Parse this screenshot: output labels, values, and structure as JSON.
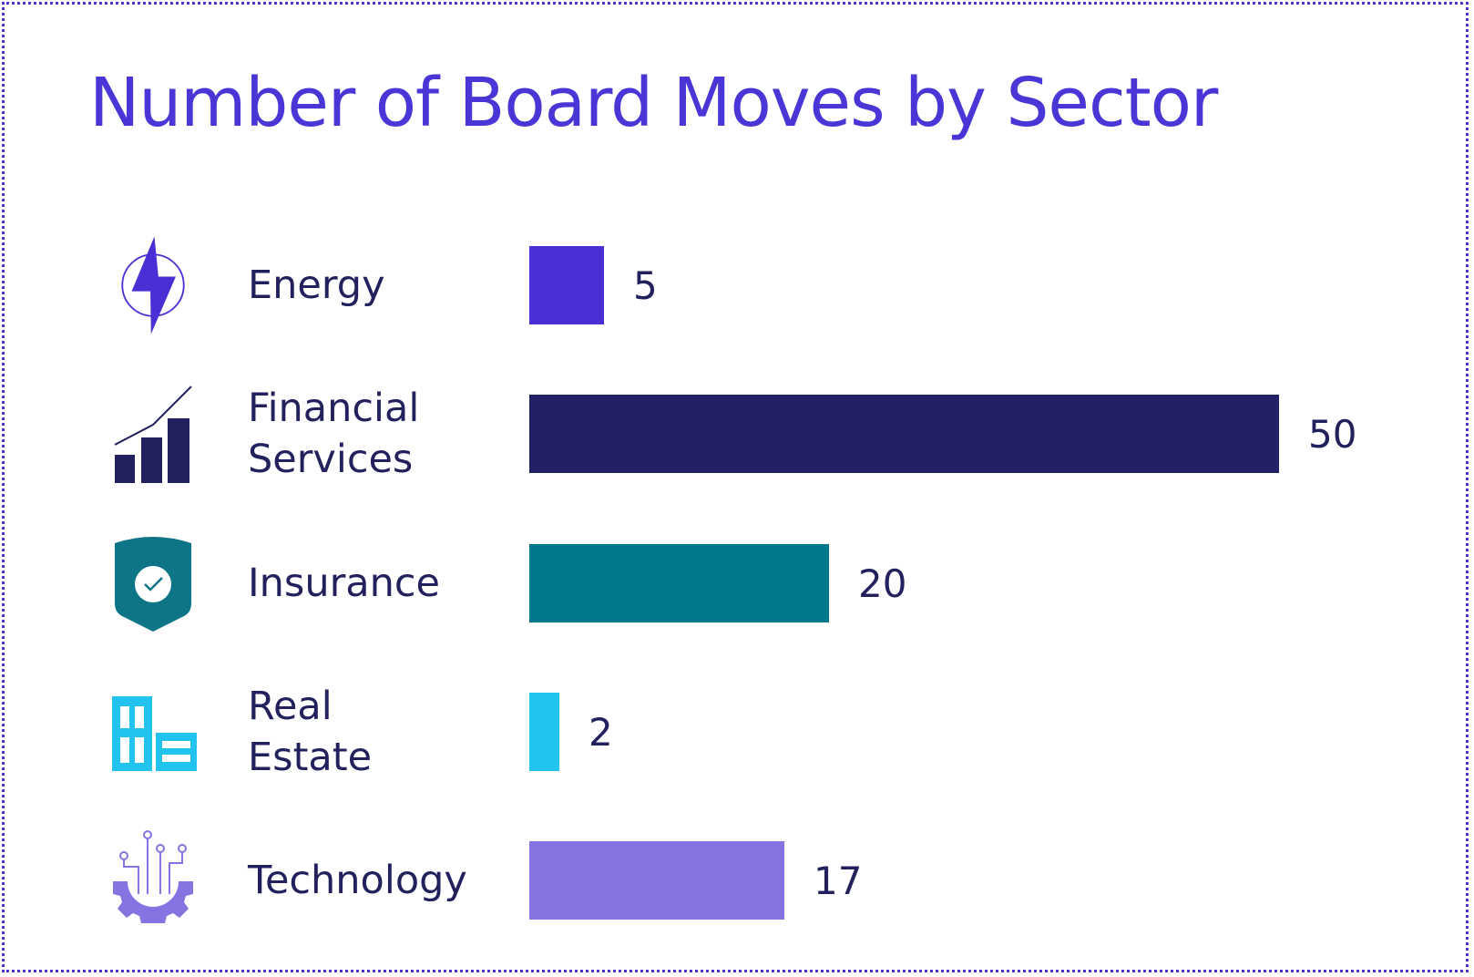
{
  "chart_data": {
    "type": "bar",
    "orientation": "horizontal",
    "title": "Number of Board Moves by Sector",
    "categories": [
      "Energy",
      "Financial\nServices",
      "Insurance",
      "Real\nEstate",
      "Technology"
    ],
    "values": [
      5,
      50,
      20,
      2,
      17
    ],
    "value_labels": [
      "5",
      "50",
      "20",
      "2",
      "17"
    ],
    "colors": [
      "#4b2fd4",
      "#222163",
      "#00788c",
      "#22c3ef",
      "#8672e0"
    ],
    "icons": [
      "lightning-icon",
      "growth-chart-icon",
      "shield-check-icon",
      "buildings-icon",
      "circuit-gear-icon"
    ],
    "xlim": [
      0,
      50
    ],
    "grid": false,
    "legend": "none"
  }
}
